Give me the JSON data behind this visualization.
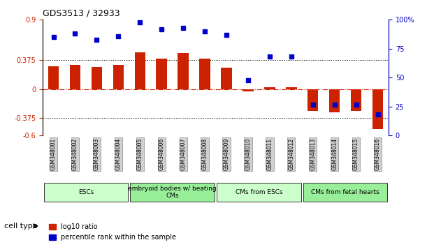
{
  "title": "GDS3513 / 32933",
  "samples": [
    "GSM348001",
    "GSM348002",
    "GSM348003",
    "GSM348004",
    "GSM348005",
    "GSM348006",
    "GSM348007",
    "GSM348008",
    "GSM348009",
    "GSM348010",
    "GSM348011",
    "GSM348012",
    "GSM348013",
    "GSM348014",
    "GSM348015",
    "GSM348016"
  ],
  "log10_ratio": [
    0.3,
    0.32,
    0.29,
    0.32,
    0.48,
    0.4,
    0.47,
    0.4,
    0.28,
    -0.03,
    0.03,
    0.03,
    -0.28,
    -0.3,
    -0.28,
    -0.52
  ],
  "percentile_rank": [
    85,
    88,
    83,
    86,
    98,
    92,
    93,
    90,
    87,
    48,
    68,
    68,
    27,
    27,
    27,
    18
  ],
  "ylim_left": [
    -0.6,
    0.9
  ],
  "ylim_right": [
    0,
    100
  ],
  "yticks_left": [
    -0.6,
    -0.375,
    0,
    0.375,
    0.9
  ],
  "yticks_right": [
    0,
    25,
    50,
    75,
    100
  ],
  "hlines": [
    0.375,
    -0.375
  ],
  "bar_color": "#cc2200",
  "dot_color": "#0000cc",
  "zero_line_color": "#cc2200",
  "cell_groups": [
    {
      "label": "ESCs",
      "start": 0,
      "end": 3,
      "color": "#ccffcc"
    },
    {
      "label": "embryoid bodies w/ beating\nCMs",
      "start": 4,
      "end": 7,
      "color": "#99ee99"
    },
    {
      "label": "CMs from ESCs",
      "start": 8,
      "end": 11,
      "color": "#ccffcc"
    },
    {
      "label": "CMs from fetal hearts",
      "start": 12,
      "end": 15,
      "color": "#99ee99"
    }
  ],
  "legend_red_label": "log10 ratio",
  "legend_blue_label": "percentile rank within the sample",
  "cell_type_label": "cell type"
}
